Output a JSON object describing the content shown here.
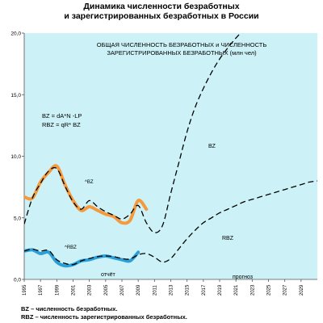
{
  "title": {
    "line1": "Динамика численности безработных",
    "line2": "и зарегистрированных безработных в России"
  },
  "footnotes": {
    "bz": "BZ – численность безработных.",
    "rbz": "RBZ – численность зарегистрированных безработных."
  },
  "chart_data": {
    "type": "line",
    "title": "ОБЩАЯ ЧИСЛЕННОСТЬ  БЕЗРАБОТНЫХ и ЧИСЛЕННОСТЬ ЗАРЕГИСТРИРОВАННЫХ  БЕЗРАБОТНЫХ  (млн чел)",
    "title_lines": [
      "ОБЩАЯ ЧИСЛЕННОСТЬ  БЕЗРАБОТНЫХ и ЧИСЛЕННОСТЬ",
      "ЗАРЕГИСТРИРОВАННЫХ  БЕЗРАБОТНЫХ  (млн чел)"
    ],
    "formulas": [
      "BZ  = dA*N -LP",
      "RBZ = qR* BZ"
    ],
    "annotations": {
      "report": "отчёт",
      "forecast": "прогноз",
      "bz_hat": "^BZ",
      "rbz_hat": "^RBZ",
      "bz": "BZ",
      "rbz": "RBZ"
    },
    "xlim": [
      1995,
      2031
    ],
    "ylim": [
      0,
      20
    ],
    "x_ticks": [
      1995,
      1997,
      1999,
      2001,
      2003,
      2005,
      2007,
      2009,
      2011,
      2013,
      2015,
      2017,
      2019,
      2021,
      2023,
      2025,
      2027,
      2029
    ],
    "y_ticks": [
      0,
      5,
      10,
      15,
      20
    ],
    "y_tick_labels": [
      "0,0",
      "5,0",
      "10,0",
      "15,0",
      "20,0"
    ],
    "grid": false,
    "colors": {
      "background": "#ccf2f7",
      "actual_bz": "#f59a3c",
      "actual_rbz": "#2a9fd8",
      "model": "#000000"
    },
    "series": [
      {
        "name": "BZ",
        "style": "model-dashed",
        "x": [
          1995,
          1996,
          1997,
          1998,
          1999,
          2000,
          2001,
          2002,
          2003,
          2004,
          2005,
          2006,
          2007,
          2008,
          2009,
          2010,
          2011,
          2012,
          2013,
          2014,
          2015,
          2016,
          2017,
          2018,
          2019,
          2020,
          2021,
          2022,
          2023,
          2024,
          2025,
          2026
        ],
        "y": [
          4.5,
          6.6,
          7.8,
          8.8,
          9.0,
          7.6,
          6.3,
          5.7,
          6.4,
          5.9,
          5.5,
          5.2,
          4.9,
          5.3,
          6.0,
          4.6,
          3.8,
          4.4,
          7.0,
          9.5,
          12.0,
          14.0,
          15.5,
          16.8,
          17.9,
          18.8,
          19.6,
          20.3,
          21.0,
          21.6,
          22.2,
          22.7
        ]
      },
      {
        "name": "^BZ",
        "style": "actual",
        "x": [
          1995,
          1996,
          1997,
          1998,
          1999,
          2000,
          2001,
          2002,
          2003,
          2004,
          2005,
          2006,
          2007,
          2008,
          2009,
          2010
        ],
        "y": [
          6.7,
          6.6,
          7.9,
          8.7,
          9.2,
          7.7,
          6.4,
          5.6,
          5.9,
          5.6,
          5.3,
          5.1,
          4.6,
          4.8,
          6.4,
          5.7
        ]
      },
      {
        "name": "RBZ",
        "style": "model-dashed",
        "x": [
          1995,
          1996,
          1997,
          1998,
          1999,
          2000,
          2001,
          2002,
          2003,
          2004,
          2005,
          2006,
          2007,
          2008,
          2009,
          2010,
          2011,
          2012,
          2013,
          2014,
          2015,
          2016,
          2017,
          2018,
          2019,
          2020,
          2021,
          2022,
          2023,
          2024,
          2025,
          2026,
          2027,
          2028,
          2029,
          2030,
          2031
        ],
        "y": [
          2.3,
          2.45,
          2.3,
          2.35,
          1.6,
          1.3,
          1.2,
          1.5,
          1.7,
          1.85,
          1.9,
          1.85,
          1.7,
          1.65,
          2.0,
          2.1,
          1.8,
          1.4,
          1.7,
          2.5,
          3.3,
          4.0,
          4.6,
          5.0,
          5.4,
          5.7,
          6.0,
          6.3,
          6.5,
          6.7,
          6.9,
          7.1,
          7.3,
          7.5,
          7.7,
          7.9,
          8.0
        ]
      },
      {
        "name": "^RBZ",
        "style": "actual",
        "x": [
          1995,
          1996,
          1997,
          1998,
          1999,
          2000,
          2001,
          2002,
          2003,
          2004,
          2005,
          2006,
          2007,
          2008,
          2009
        ],
        "y": [
          2.3,
          2.4,
          2.1,
          2.2,
          1.4,
          1.1,
          1.2,
          1.5,
          1.6,
          1.8,
          1.9,
          1.75,
          1.6,
          1.5,
          2.2
        ]
      }
    ]
  }
}
